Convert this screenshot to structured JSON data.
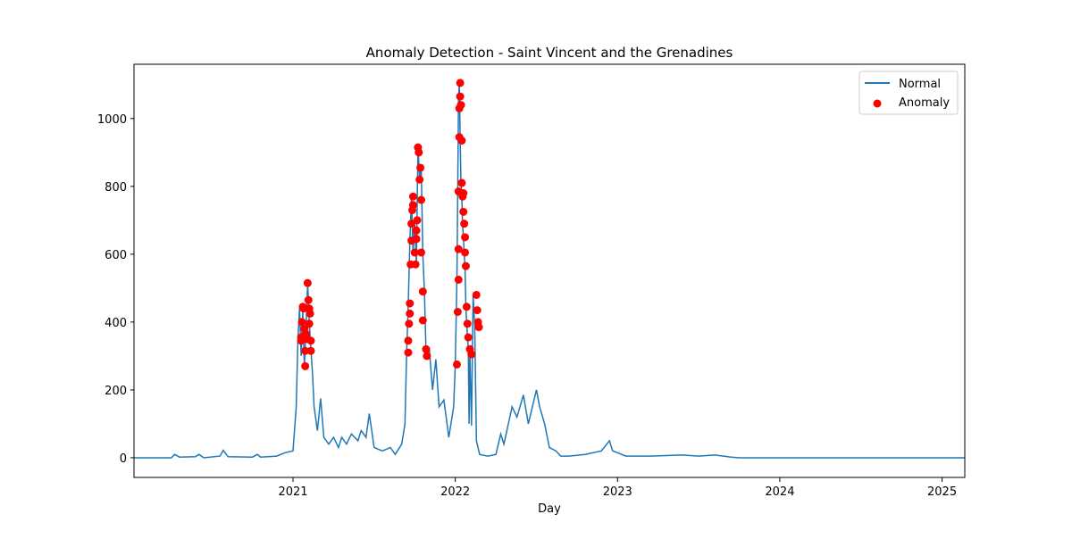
{
  "chart_data": {
    "type": "line",
    "title": "Anomaly Detection - Saint Vincent and the Grenadines",
    "x_label": "Day",
    "xlim": [
      2020.02,
      2025.14
    ],
    "xticks": [
      2021,
      2022,
      2023,
      2024,
      2025
    ],
    "ylim": [
      -58,
      1160
    ],
    "yticks": [
      0,
      200,
      400,
      600,
      800,
      1000
    ],
    "legend": "upper right",
    "series": [
      {
        "name": "Normal",
        "color": "#1f77b4",
        "mode": "line",
        "x": [
          2020.02,
          2020.25,
          2020.27,
          2020.3,
          2020.4,
          2020.42,
          2020.45,
          2020.55,
          2020.57,
          2020.6,
          2020.75,
          2020.78,
          2020.8,
          2020.9,
          2020.95,
          2021.0,
          2021.02,
          2021.03,
          2021.04,
          2021.05,
          2021.06,
          2021.07,
          2021.08,
          2021.09,
          2021.1,
          2021.11,
          2021.12,
          2021.13,
          2021.15,
          2021.17,
          2021.19,
          2021.22,
          2021.25,
          2021.28,
          2021.3,
          2021.33,
          2021.36,
          2021.4,
          2021.42,
          2021.45,
          2021.47,
          2021.5,
          2021.55,
          2021.6,
          2021.63,
          2021.67,
          2021.69,
          2021.7,
          2021.71,
          2021.72,
          2021.73,
          2021.74,
          2021.75,
          2021.76,
          2021.77,
          2021.78,
          2021.79,
          2021.8,
          2021.81,
          2021.82,
          2021.84,
          2021.86,
          2021.88,
          2021.9,
          2021.93,
          2021.96,
          2021.99,
          2022.0,
          2022.01,
          2022.015,
          2022.02,
          2022.025,
          2022.03,
          2022.035,
          2022.04,
          2022.045,
          2022.05,
          2022.055,
          2022.06,
          2022.065,
          2022.07,
          2022.075,
          2022.08,
          2022.085,
          2022.09,
          2022.1,
          2022.11,
          2022.12,
          2022.13,
          2022.15,
          2022.2,
          2022.25,
          2022.28,
          2022.3,
          2022.35,
          2022.38,
          2022.42,
          2022.45,
          2022.5,
          2022.52,
          2022.55,
          2022.58,
          2022.62,
          2022.65,
          2022.7,
          2022.8,
          2022.9,
          2022.95,
          2022.97,
          2023.0,
          2023.05,
          2023.2,
          2023.4,
          2023.5,
          2023.6,
          2023.7,
          2023.75,
          2025.14
        ],
        "values": [
          0,
          0,
          10,
          2,
          3,
          10,
          0,
          5,
          22,
          3,
          2,
          10,
          2,
          5,
          15,
          20,
          150,
          350,
          440,
          300,
          430,
          270,
          380,
          515,
          400,
          320,
          250,
          150,
          80,
          175,
          60,
          40,
          60,
          30,
          60,
          40,
          70,
          50,
          80,
          60,
          130,
          30,
          20,
          30,
          10,
          40,
          100,
          310,
          450,
          640,
          770,
          600,
          700,
          570,
          920,
          820,
          860,
          600,
          490,
          300,
          320,
          200,
          290,
          150,
          170,
          60,
          150,
          270,
          530,
          790,
          1060,
          1105,
          940,
          810,
          770,
          690,
          650,
          600,
          565,
          445,
          395,
          355,
          320,
          100,
          310,
          95,
          480,
          390,
          50,
          10,
          5,
          10,
          70,
          40,
          150,
          120,
          185,
          100,
          200,
          150,
          100,
          30,
          20,
          5,
          5,
          10,
          20,
          50,
          20,
          15,
          5,
          5,
          8,
          5,
          8,
          2,
          0,
          0
        ]
      },
      {
        "name": "Anomaly",
        "color": "#ff0000",
        "mode": "scatter",
        "x": [
          2021.05,
          2021.05,
          2021.055,
          2021.06,
          2021.065,
          2021.07,
          2021.075,
          2021.075,
          2021.08,
          2021.085,
          2021.09,
          2021.095,
          2021.1,
          2021.1,
          2021.105,
          2021.11,
          2021.11,
          2021.71,
          2021.71,
          2021.715,
          2021.72,
          2021.72,
          2021.725,
          2021.73,
          2021.73,
          2021.735,
          2021.74,
          2021.74,
          2021.75,
          2021.755,
          2021.76,
          2021.76,
          2021.765,
          2021.77,
          2021.775,
          2021.78,
          2021.785,
          2021.79,
          2021.79,
          2021.8,
          2021.8,
          2021.82,
          2021.825,
          2022.01,
          2022.015,
          2022.02,
          2022.02,
          2022.02,
          2022.025,
          2022.025,
          2022.03,
          2022.03,
          2022.035,
          2022.04,
          2022.04,
          2022.045,
          2022.05,
          2022.05,
          2022.055,
          2022.06,
          2022.06,
          2022.065,
          2022.07,
          2022.075,
          2022.08,
          2022.09,
          2022.1,
          2022.13,
          2022.135,
          2022.14,
          2022.145
        ],
        "values": [
          345,
          355,
          400,
          445,
          440,
          380,
          315,
          270,
          365,
          350,
          515,
          465,
          440,
          395,
          425,
          315,
          345,
          310,
          345,
          395,
          425,
          455,
          570,
          640,
          690,
          730,
          745,
          770,
          605,
          570,
          645,
          670,
          700,
          915,
          900,
          820,
          855,
          760,
          605,
          490,
          405,
          320,
          300,
          275,
          430,
          525,
          615,
          785,
          945,
          1030,
          1065,
          1105,
          1040,
          935,
          810,
          770,
          780,
          725,
          690,
          650,
          605,
          565,
          445,
          395,
          355,
          320,
          305,
          480,
          435,
          400,
          385
        ]
      }
    ]
  }
}
